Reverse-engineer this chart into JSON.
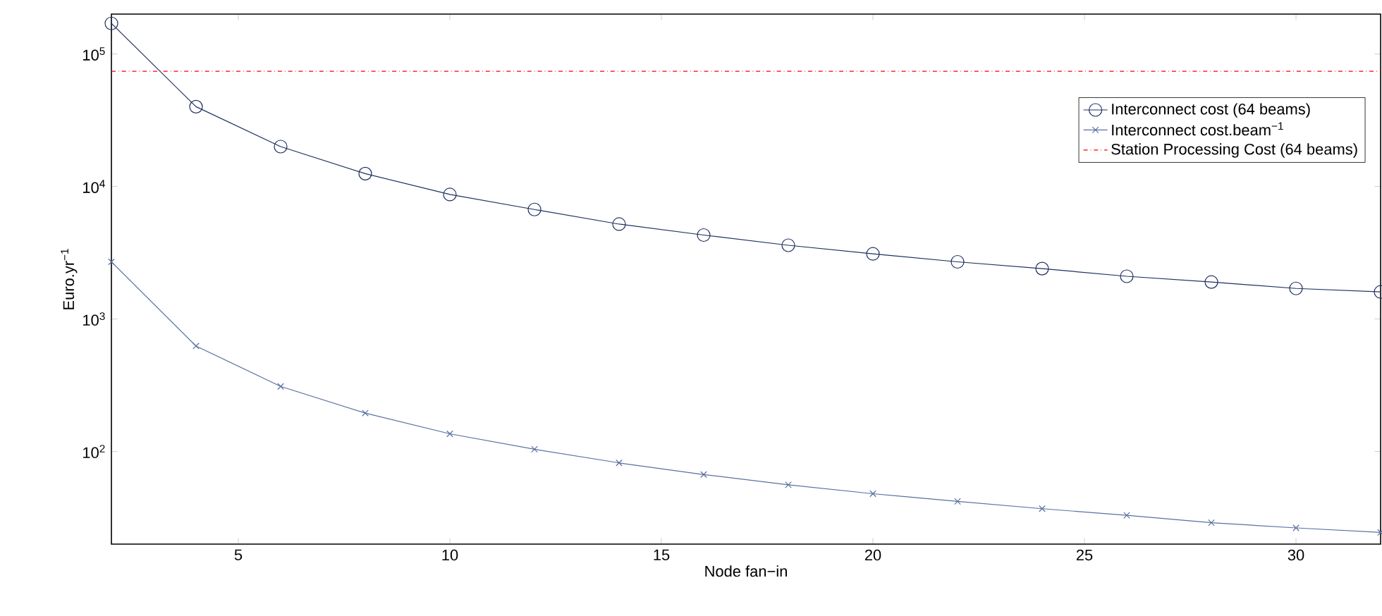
{
  "chart_data": {
    "type": "line",
    "xlabel": "Node fan−in",
    "ylabel": "Euro.yr$^{−1}$",
    "log": "y",
    "x": [
      2,
      4,
      6,
      8,
      10,
      12,
      14,
      16,
      18,
      20,
      22,
      24,
      26,
      28,
      30,
      32
    ],
    "series": [
      {
        "name": "Interconnect cost (64 beams)",
        "color": "#1f3060",
        "marker": "circle",
        "values": [
          170000,
          40000,
          20000,
          12500,
          8700,
          6700,
          5200,
          4300,
          3600,
          3100,
          2700,
          2400,
          2100,
          1900,
          1700,
          1600
        ]
      },
      {
        "name": "Interconnect cost.beam$^{−1}$",
        "color": "#5a70a0",
        "marker": "cross",
        "values": [
          2700,
          625,
          310,
          195,
          136,
          104,
          82,
          67,
          56,
          48,
          42,
          37,
          33,
          29,
          26.5,
          24.5
        ]
      }
    ],
    "ref_lines": [
      {
        "axis": "y",
        "value": 74000,
        "label": "Station Processing Cost (64 beams)",
        "color": "#ff0000",
        "line_style": "dashdot"
      }
    ],
    "xlim": [
      2,
      32
    ],
    "ylim": [
      20,
      200000
    ],
    "xticks": [
      5,
      10,
      15,
      20,
      25,
      30
    ],
    "yticks": [
      {
        "value": 100,
        "label": "10$^{2}$"
      },
      {
        "value": 1000,
        "label": "10$^{3}$"
      },
      {
        "value": 10000,
        "label": "10$^{4}$"
      },
      {
        "value": 100000,
        "label": "10$^{5}$"
      }
    ],
    "legend": "top right"
  }
}
